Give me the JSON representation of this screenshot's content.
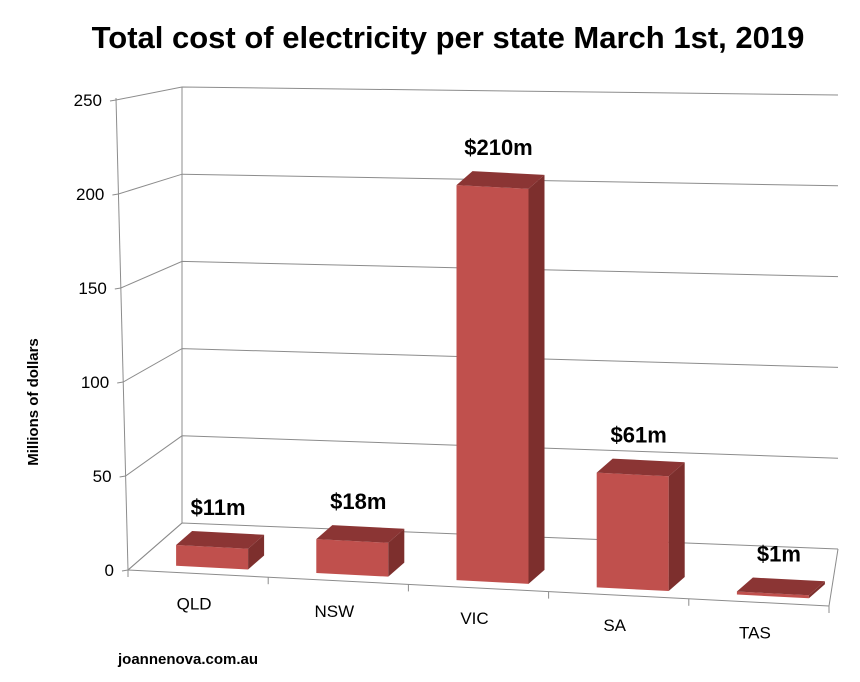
{
  "chart_data": {
    "type": "bar",
    "title": "Total cost of electricity per state March 1st, 2019",
    "xlabel": "",
    "ylabel": "Millions of dollars",
    "categories": [
      "QLD",
      "NSW",
      "VIC",
      "SA",
      "TAS"
    ],
    "values": [
      11,
      18,
      210,
      61,
      1
    ],
    "data_labels": [
      "$11m",
      "$18m",
      "$210m",
      "$61m",
      "$1m"
    ],
    "ylim": [
      0,
      250
    ],
    "yticks": [
      0,
      50,
      100,
      150,
      200,
      250
    ],
    "grid": true,
    "legend": "none",
    "style": "3d-bar",
    "colors": {
      "bar_front": "#c0504d",
      "bar_top": "#8b3534",
      "bar_side": "#7d2f2d",
      "grid": "#8c8c8c"
    }
  },
  "source": "joannenova.com.au"
}
